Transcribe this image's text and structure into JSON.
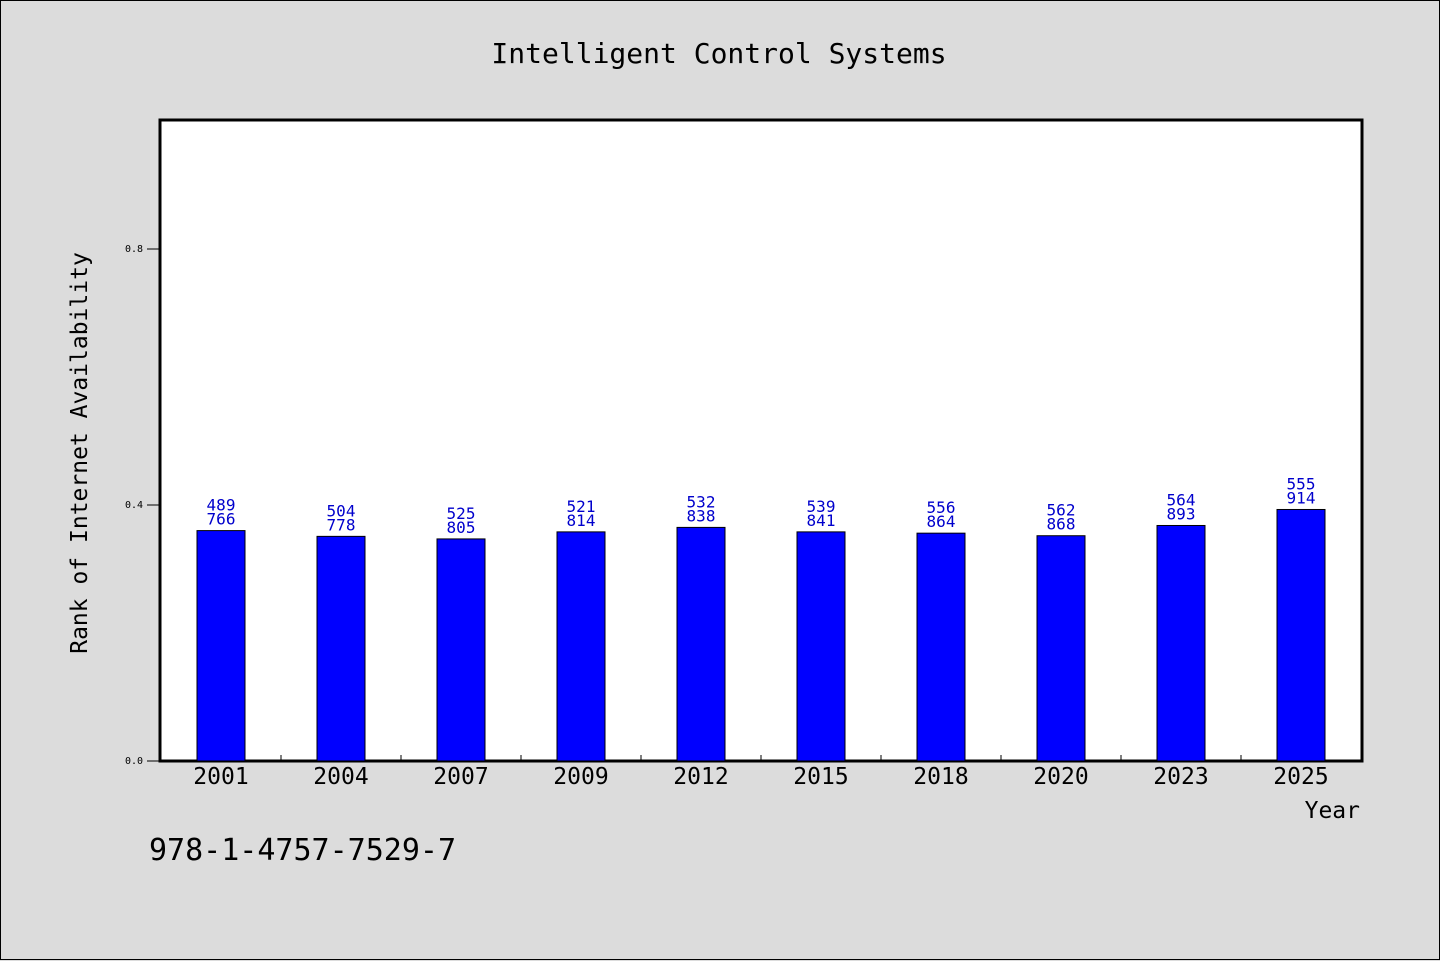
{
  "chart_data": {
    "type": "bar",
    "title": "Intelligent Control Systems",
    "xlabel": "Year",
    "ylabel": "Rank of Internet Availability",
    "categories": [
      "2001",
      "2004",
      "2007",
      "2009",
      "2012",
      "2015",
      "2018",
      "2020",
      "2023",
      "2025"
    ],
    "values": [
      0.36,
      0.351,
      0.347,
      0.358,
      0.365,
      0.358,
      0.356,
      0.352,
      0.368,
      0.393
    ],
    "data_labels": [
      [
        "489",
        "766"
      ],
      [
        "504",
        "778"
      ],
      [
        "525",
        "805"
      ],
      [
        "521",
        "814"
      ],
      [
        "532",
        "838"
      ],
      [
        "539",
        "841"
      ],
      [
        "556",
        "864"
      ],
      [
        "562",
        "868"
      ],
      [
        "564",
        "893"
      ],
      [
        "555",
        "914"
      ]
    ],
    "ylim": [
      0,
      1.0
    ],
    "yticks": [
      0.0,
      0.4,
      0.8
    ],
    "ytick_labels": [
      "0.0",
      "0.4",
      "0.8"
    ],
    "grid": false,
    "bar_color": "#0000ff",
    "label_color": "#0000cc"
  },
  "footer": {
    "isbn": "978-1-4757-7529-7"
  }
}
